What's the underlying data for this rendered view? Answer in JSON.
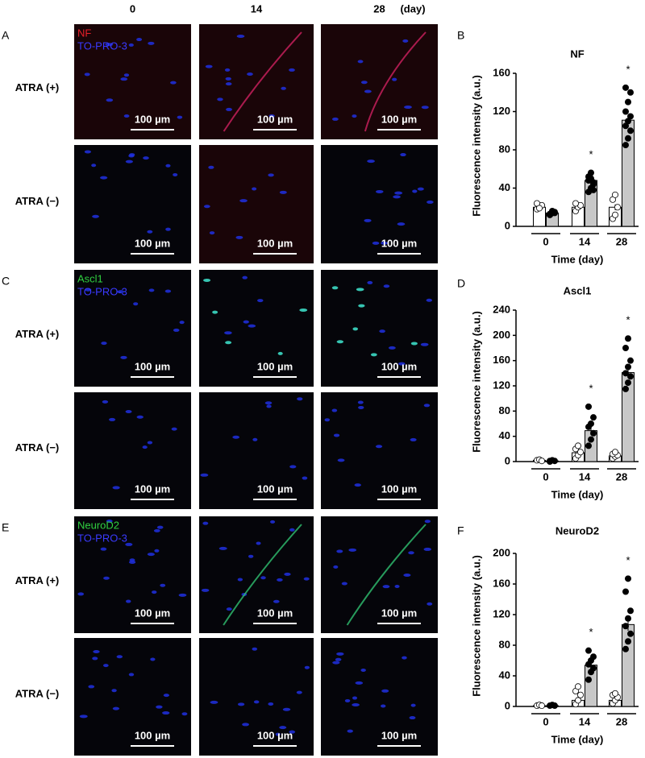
{
  "figure": {
    "column_headers": [
      "0",
      "14",
      "28"
    ],
    "day_unit": "(day)",
    "row_labels": [
      "ATRA (+)",
      "ATRA (−)"
    ],
    "scale_bar": "100 µm",
    "panels": [
      {
        "letter": "A",
        "markers": [
          "NF",
          "TO-PRO-3"
        ],
        "marker_colors": [
          "#e8202a",
          "#3a3aff"
        ]
      },
      {
        "letter": "C",
        "markers": [
          "Ascl1",
          "TO-PRO-3"
        ],
        "marker_colors": [
          "#30d040",
          "#3a3aff"
        ]
      },
      {
        "letter": "E",
        "markers": [
          "NeuroD2",
          "TO-PRO-3"
        ],
        "marker_colors": [
          "#30d040",
          "#3a3aff"
        ]
      }
    ]
  },
  "chart_data": [
    {
      "type": "bar",
      "panel_letter": "B",
      "title": "NF",
      "categories": [
        "0",
        "14",
        "28"
      ],
      "xlabel": "Time (day)",
      "ylabel": "Fluorescence intensity (a.u.)",
      "ylim": [
        0,
        160
      ],
      "yticks": [
        0,
        40,
        80,
        120,
        160
      ],
      "series": [
        {
          "color": "#ffffff",
          "point_color": "#ffffff",
          "values": [
            20,
            20,
            20
          ],
          "errors": [
            1,
            1,
            3
          ],
          "points": [
            [
              18,
              20,
              22,
              24,
              19
            ],
            [
              16,
              20,
              22,
              24
            ],
            [
              8,
              12,
              20,
              28,
              33
            ]
          ]
        },
        {
          "color": "#c8c8c8",
          "point_color": "#000000",
          "values": [
            14,
            48,
            111
          ],
          "errors": [
            1,
            3,
            5
          ],
          "points": [
            [
              12,
              14,
              15,
              13,
              16,
              14,
              12,
              15
            ],
            [
              36,
              40,
              44,
              48,
              50,
              46,
              52,
              56,
              38
            ],
            [
              85,
              92,
              100,
              105,
              110,
              115,
              120,
              130,
              140,
              145
            ]
          ]
        }
      ],
      "annotations": [
        {
          "text": "*",
          "category": 1
        },
        {
          "text": "*",
          "category": 2
        }
      ]
    },
    {
      "type": "bar",
      "panel_letter": "D",
      "title": "Ascl1",
      "categories": [
        "0",
        "14",
        "28"
      ],
      "xlabel": "Time (day)",
      "ylabel": "Fluorescence intensity (a.u.)",
      "ylim": [
        0,
        240
      ],
      "yticks": [
        0,
        40,
        80,
        120,
        160,
        200,
        240
      ],
      "series": [
        {
          "color": "#ffffff",
          "point_color": "#ffffff",
          "values": [
            2,
            14,
            9
          ],
          "errors": [
            0.5,
            2,
            1
          ],
          "points": [
            [
              2,
              3,
              1
            ],
            [
              5,
              10,
              15,
              20,
              25
            ],
            [
              5,
              8,
              10,
              12,
              15
            ]
          ]
        },
        {
          "color": "#c8c8c8",
          "point_color": "#000000",
          "values": [
            1,
            49,
            141
          ],
          "errors": [
            0.5,
            7,
            7
          ],
          "points": [
            [
              1,
              2,
              1,
              0
            ],
            [
              25,
              35,
              45,
              55,
              60,
              70,
              87
            ],
            [
              115,
              125,
              135,
              140,
              150,
              160,
              180,
              195
            ]
          ]
        }
      ],
      "annotations": [
        {
          "text": "*",
          "category": 1
        },
        {
          "text": "*",
          "category": 2
        }
      ]
    },
    {
      "type": "bar",
      "panel_letter": "F",
      "title": "NeuroD2",
      "categories": [
        "0",
        "14",
        "28"
      ],
      "xlabel": "Time (day)",
      "ylabel": "Fluorescence intensity (a.u.)",
      "ylim": [
        0,
        200
      ],
      "yticks": [
        0,
        40,
        80,
        120,
        160,
        200
      ],
      "series": [
        {
          "color": "#ffffff",
          "point_color": "#ffffff",
          "values": [
            1,
            8,
            8
          ],
          "errors": [
            0.3,
            3,
            2
          ],
          "points": [
            [
              1,
              2,
              1
            ],
            [
              3,
              8,
              15,
              20,
              26
            ],
            [
              4,
              8,
              12,
              15,
              17
            ]
          ]
        },
        {
          "color": "#c8c8c8",
          "point_color": "#000000",
          "values": [
            1,
            54,
            107
          ],
          "errors": [
            0.3,
            5,
            8
          ],
          "points": [
            [
              1,
              2,
              1
            ],
            [
              35,
              45,
              50,
              55,
              60,
              65,
              73
            ],
            [
              75,
              85,
              95,
              105,
              115,
              125,
              150,
              167
            ]
          ]
        }
      ],
      "annotations": [
        {
          "text": "*",
          "category": 1
        },
        {
          "text": "*",
          "category": 2
        }
      ]
    }
  ]
}
